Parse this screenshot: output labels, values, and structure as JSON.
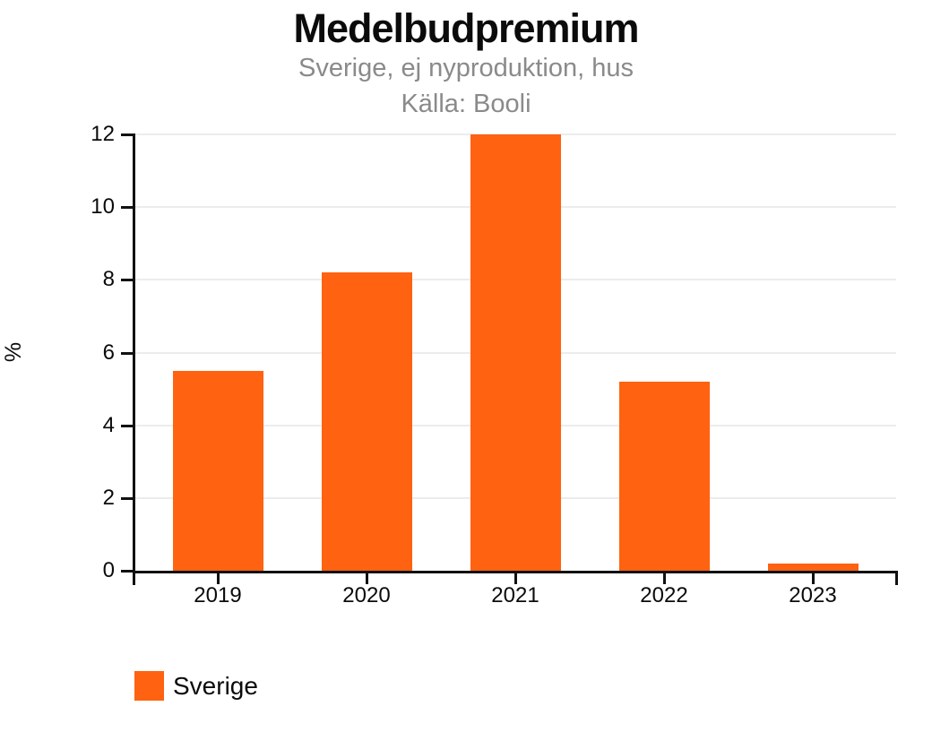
{
  "header": {
    "title": "Medelbudpremium",
    "subtitle": "Sverige, ej nyproduktion, hus",
    "source": "Källa: Booli"
  },
  "chart_data": {
    "type": "bar",
    "title": "Medelbudpremium",
    "subtitle": "Sverige, ej nyproduktion, hus",
    "source_note": "Källa: Booli",
    "categories": [
      "2019",
      "2020",
      "2021",
      "2022",
      "2023"
    ],
    "series": [
      {
        "name": "Sverige",
        "color": "#FF6210",
        "values": [
          5.5,
          8.2,
          12.0,
          5.2,
          0.2
        ]
      }
    ],
    "xlabel": "",
    "ylabel": "%",
    "ylim": [
      0,
      12
    ],
    "yticks": [
      0,
      2,
      4,
      6,
      8,
      10,
      12
    ],
    "grid": true,
    "legend_position": "bottom-left"
  },
  "legend": {
    "items": [
      {
        "label": "Sverige",
        "color": "#FF6210"
      }
    ]
  },
  "colors": {
    "bar": "#FF6210",
    "axis": "#111111",
    "gridline": "#ECECEC",
    "title_text": "#0B0B0B",
    "subtitle_text": "#8A8A8A"
  }
}
